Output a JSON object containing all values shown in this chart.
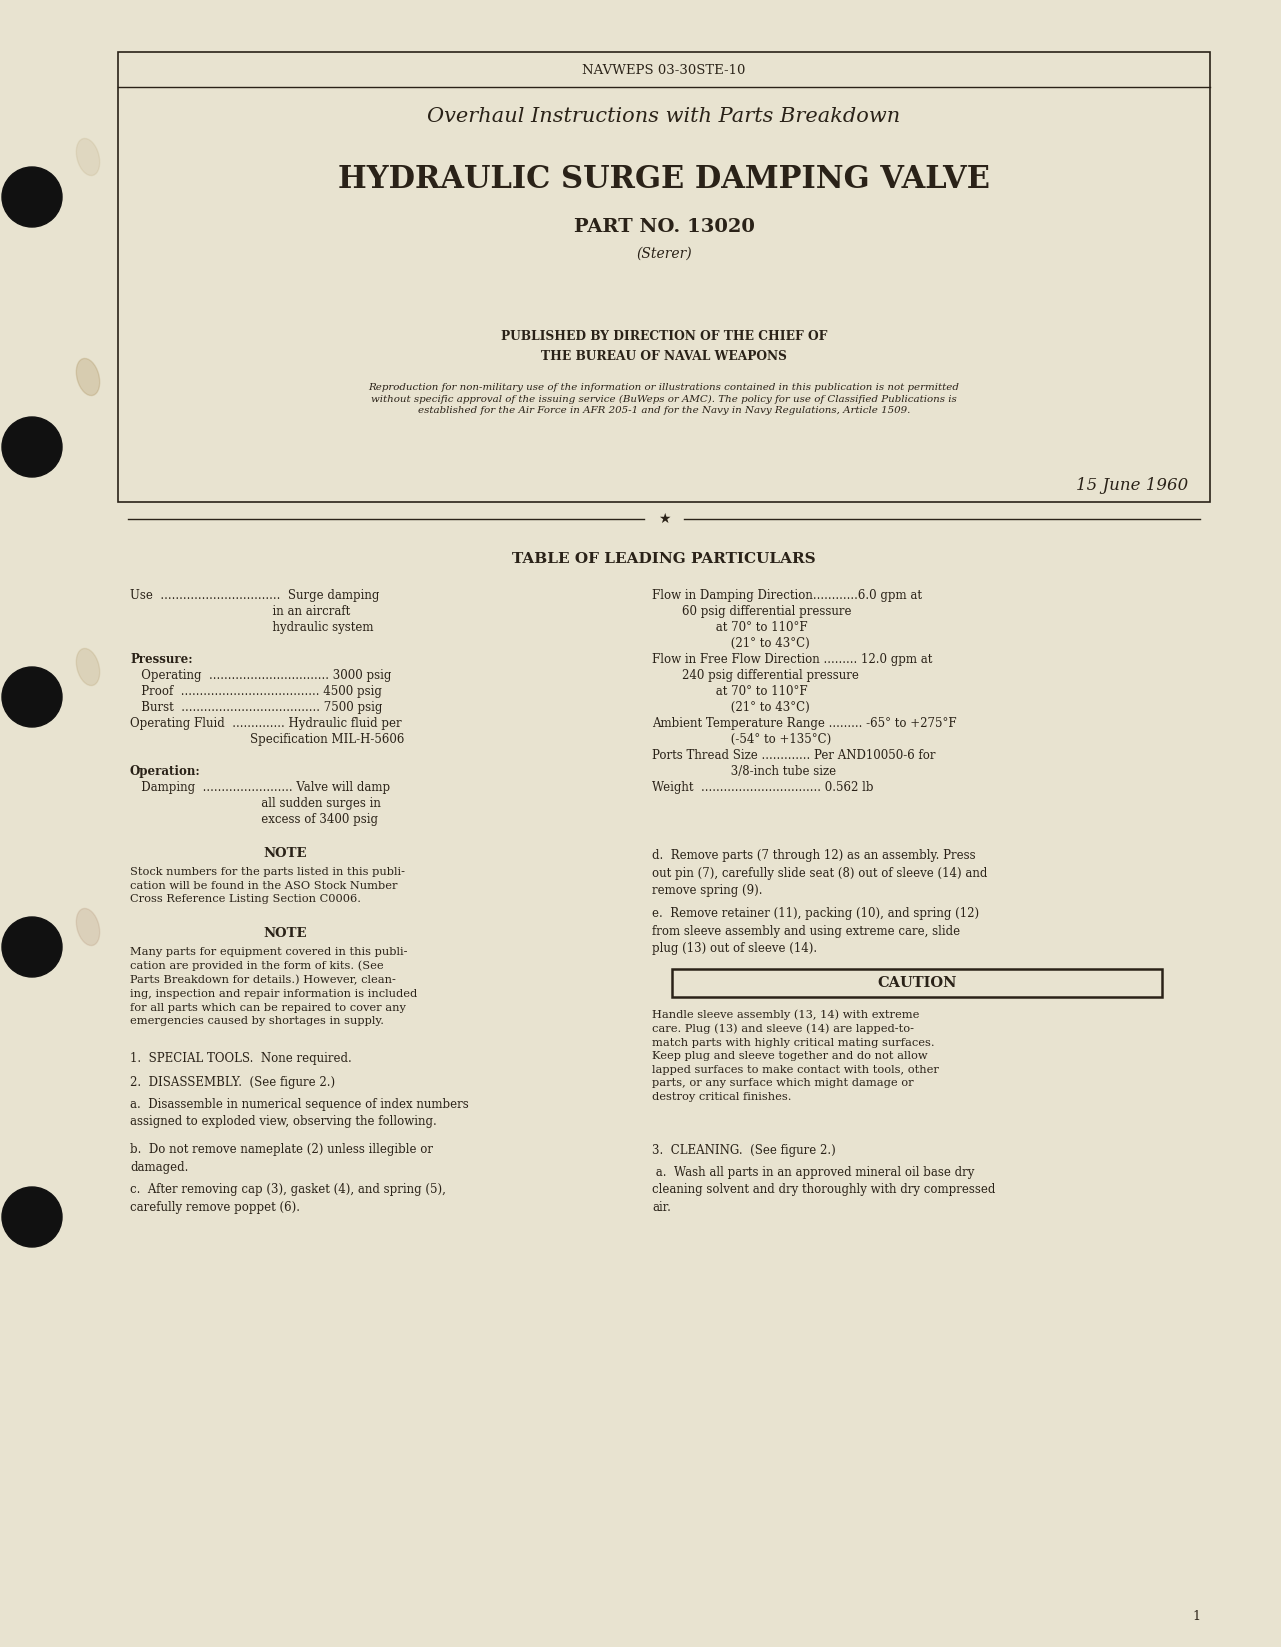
{
  "page_bg": "#e8e3d0",
  "box_bg": "#e8e3d0",
  "text_color": "#2a2218",
  "header_doc_num": "NAVWEPS 03-30STE-10",
  "title1": "Overhaul Instructions with Parts Breakdown",
  "title2": "HYDRAULIC SURGE DAMPING VALVE",
  "title3": "PART NO. 13020",
  "title4": "(Sterer)",
  "pub_line1": "PUBLISHED BY DIRECTION OF THE CHIEF OF",
  "pub_line2": "THE BUREAU OF NAVAL WEAPONS",
  "reproduction_text": "Reproduction for non-military use of the information or illustrations contained in this publication is not permitted\nwithout specific approval of the issuing service (BuWeps or AMC). The policy for use of Classified Publications is\nestablished for the Air Force in AFR 205-1 and for the Navy in Navy Regulations, Article 1509.",
  "date": "15 June 1960",
  "table_title": "TABLE OF LEADING PARTICULARS",
  "note1_title": "NOTE",
  "note1_text": "Stock numbers for the parts listed in this publi-\ncation will be found in the ASO Stock Number\nCross Reference Listing Section C0006.",
  "note2_title": "NOTE",
  "note2_text": "Many parts for equipment covered in this publi-\ncation are provided in the form of kits. (See\nParts Breakdown for details.) However, clean-\ning, inspection and repair information is included\nfor all parts which can be repaired to cover any\nemergencies caused by shortages in supply.",
  "right_para_d": "d.  Remove parts (7 through 12) as an assembly. Press\nout pin (7), carefully slide seat (8) out of sleeve (14) and\nremove spring (9).",
  "right_para_e": "e.  Remove retainer (11), packing (10), and spring (12)\nfrom sleeve assembly and using extreme care, slide\nplug (13) out of sleeve (14).",
  "caution_title": "CAUTION",
  "caution_text": "Handle sleeve assembly (13, 14) with extreme\ncare. Plug (13) and sleeve (14) are lapped-to-\nmatch parts with highly critical mating surfaces.\nKeep plug and sleeve together and do not allow\nlapped surfaces to make contact with tools, other\nparts, or any surface which might damage or\ndestroy critical finishes.",
  "section3a": " a.  Wash all parts in an approved mineral oil base dry\ncleaning solvent and dry thoroughly with dry compressed\nair.",
  "page_num": "1"
}
